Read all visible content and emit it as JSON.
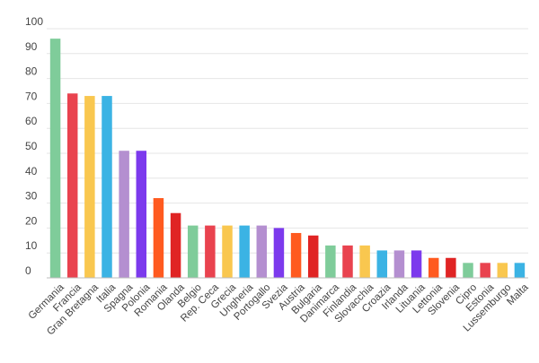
{
  "chart_data": {
    "type": "bar",
    "title": "",
    "xlabel": "",
    "ylabel": "",
    "ylim": [
      0,
      100
    ],
    "yticks": [
      0,
      10,
      20,
      30,
      40,
      50,
      60,
      70,
      80,
      90,
      100
    ],
    "grid": true,
    "legend": "none",
    "categories": [
      "Germania",
      "Francia",
      "Gran Bretagna",
      "Italia",
      "Spagna",
      "Polonia",
      "Romania",
      "Olanda",
      "Belgio",
      "Rep. Ceca",
      "Grecia",
      "Ungheria",
      "Portogallo",
      "Svezia",
      "Austria",
      "Bulgaria",
      "Danimarca",
      "Finlandia",
      "Slovacchia",
      "Croazia",
      "Irlanda",
      "Lituania",
      "Lettonia",
      "Slovenia",
      "Cipro",
      "Estonia",
      "Lussemburgo",
      "Malta"
    ],
    "values": [
      96,
      74,
      73,
      73,
      51,
      51,
      32,
      26,
      21,
      21,
      21,
      21,
      21,
      20,
      18,
      17,
      13,
      13,
      13,
      11,
      11,
      11,
      8,
      8,
      6,
      6,
      6,
      6
    ],
    "bar_colors": [
      "#7fcc9a",
      "#e9434f",
      "#f9c74f",
      "#3bb3e4",
      "#b48fd0",
      "#7c3aed",
      "#ff5a1f",
      "#e02424",
      "#7fcc9a",
      "#e9434f",
      "#f9c74f",
      "#3bb3e4",
      "#b48fd0",
      "#7c3aed",
      "#ff5a1f",
      "#e02424",
      "#7fcc9a",
      "#e9434f",
      "#f9c74f",
      "#3bb3e4",
      "#b48fd0",
      "#7c3aed",
      "#ff5a1f",
      "#e02424",
      "#7fcc9a",
      "#e9434f",
      "#f9c74f",
      "#3bb3e4"
    ],
    "grid_color": "#e6e6e6",
    "text_color": "#444444"
  }
}
